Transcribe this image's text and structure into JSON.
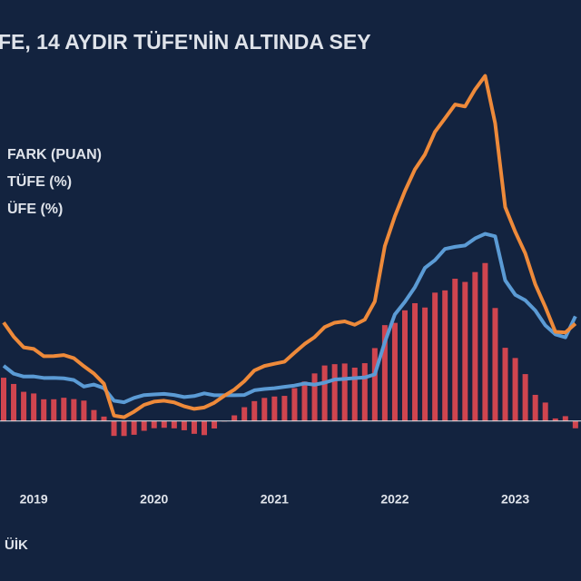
{
  "chart_data": {
    "type": "bar-line",
    "title": "FE, 14 AYDIR TÜFE'NİN ALTINDA SEY",
    "source": "ÜİK",
    "categories": [
      null,
      null,
      null,
      "2019",
      null,
      null,
      null,
      null,
      null,
      null,
      null,
      null,
      null,
      null,
      null,
      "2020",
      null,
      null,
      null,
      null,
      null,
      null,
      null,
      null,
      null,
      null,
      null,
      "2021",
      null,
      null,
      null,
      null,
      null,
      null,
      null,
      null,
      null,
      null,
      null,
      "2022",
      null,
      null,
      null,
      null,
      null,
      null,
      null,
      null,
      null,
      null,
      null,
      "2023",
      null,
      null,
      null,
      null,
      null,
      null
    ],
    "series": [
      {
        "name": "FARK (PUAN)",
        "kind": "bar",
        "color": "#d0454f",
        "values": [
          19.77,
          16.92,
          13.34,
          12.58,
          9.92,
          9.93,
          10.62,
          10.0,
          9.32,
          5.01,
          2.02,
          -6.81,
          -6.85,
          -6.3,
          -4.48,
          -3.31,
          -3.11,
          -3.36,
          -4.23,
          -5.86,
          -6.45,
          -3.43,
          -0.24,
          2.58,
          6.31,
          9.08,
          10.55,
          11.19,
          11.48,
          15.01,
          18.03,
          21.74,
          25.36,
          25.97,
          26.27,
          24.38,
          26.42,
          33.31,
          43.81,
          44.84,
          50.57,
          53.83,
          51.85,
          58.66,
          59.69,
          65.01,
          63.54,
          68.05,
          72.18,
          51.63,
          33.45,
          28.78,
          21.43,
          11.94,
          8.43,
          1.17,
          2.21,
          -3.33
        ]
      },
      {
        "name": "TÜFE (%)",
        "kind": "line",
        "color": "#5b9bd5",
        "values": [
          25.24,
          21.62,
          20.3,
          20.35,
          19.67,
          19.71,
          19.5,
          18.71,
          15.72,
          16.65,
          15.01,
          9.26,
          8.55,
          10.56,
          11.84,
          12.15,
          12.37,
          11.86,
          10.94,
          11.39,
          12.62,
          11.76,
          11.77,
          11.75,
          11.89,
          14.03,
          14.6,
          14.97,
          15.61,
          16.19,
          17.14,
          16.59,
          17.53,
          18.95,
          19.25,
          19.58,
          19.89,
          21.31,
          36.08,
          48.69,
          54.44,
          61.14,
          69.97,
          73.5,
          78.62,
          79.6,
          80.21,
          83.45,
          85.51,
          84.39,
          64.27,
          57.68,
          55.18,
          50.51,
          43.68,
          39.59,
          38.21,
          47.83
        ]
      },
      {
        "name": "ÜFE (%)",
        "kind": "line",
        "color": "#ee8a3a",
        "values": [
          45.01,
          38.54,
          33.64,
          32.93,
          29.59,
          29.64,
          30.12,
          28.71,
          25.04,
          21.66,
          17.03,
          2.45,
          1.7,
          4.26,
          7.36,
          8.84,
          9.26,
          8.5,
          6.71,
          5.53,
          6.17,
          8.33,
          11.53,
          14.33,
          18.2,
          23.11,
          25.15,
          26.16,
          27.09,
          31.2,
          35.17,
          38.33,
          42.89,
          44.92,
          45.52,
          43.96,
          46.31,
          54.62,
          79.89,
          93.53,
          105.01,
          114.97,
          121.82,
          132.16,
          138.31,
          144.61,
          143.75,
          151.5,
          157.69,
          136.02,
          97.72,
          86.46,
          76.61,
          62.45,
          52.11,
          40.76,
          40.42,
          44.5
        ]
      }
    ],
    "ylim": [
      -25,
      165
    ]
  }
}
